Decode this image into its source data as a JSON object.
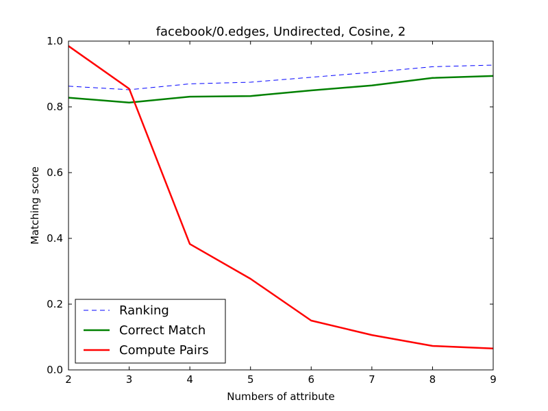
{
  "chart_data": {
    "type": "line",
    "title": "facebook/0.edges, Undirected, Cosine, 2",
    "xlabel": "Numbers of attribute",
    "ylabel": "Matching score",
    "x": [
      2,
      3,
      4,
      5,
      6,
      7,
      8,
      9
    ],
    "xlim": [
      2,
      9
    ],
    "ylim": [
      0.0,
      1.0
    ],
    "xticks": [
      "2",
      "3",
      "4",
      "5",
      "6",
      "7",
      "8",
      "9"
    ],
    "yticks": [
      "0.0",
      "0.2",
      "0.4",
      "0.6",
      "0.8",
      "1.0"
    ],
    "grid": false,
    "legend_position": "lower-left",
    "series": [
      {
        "name": "Ranking",
        "color": "#0000ff",
        "style": "dashed",
        "values": [
          0.863,
          0.852,
          0.87,
          0.875,
          0.89,
          0.905,
          0.922,
          0.927
        ]
      },
      {
        "name": "Correct Match",
        "color": "#008000",
        "style": "solid",
        "values": [
          0.828,
          0.813,
          0.831,
          0.833,
          0.85,
          0.865,
          0.888,
          0.894
        ]
      },
      {
        "name": "Compute Pairs",
        "color": "#ff0000",
        "style": "solid",
        "values": [
          0.985,
          0.855,
          0.383,
          0.277,
          0.15,
          0.106,
          0.073,
          0.065
        ]
      }
    ]
  }
}
